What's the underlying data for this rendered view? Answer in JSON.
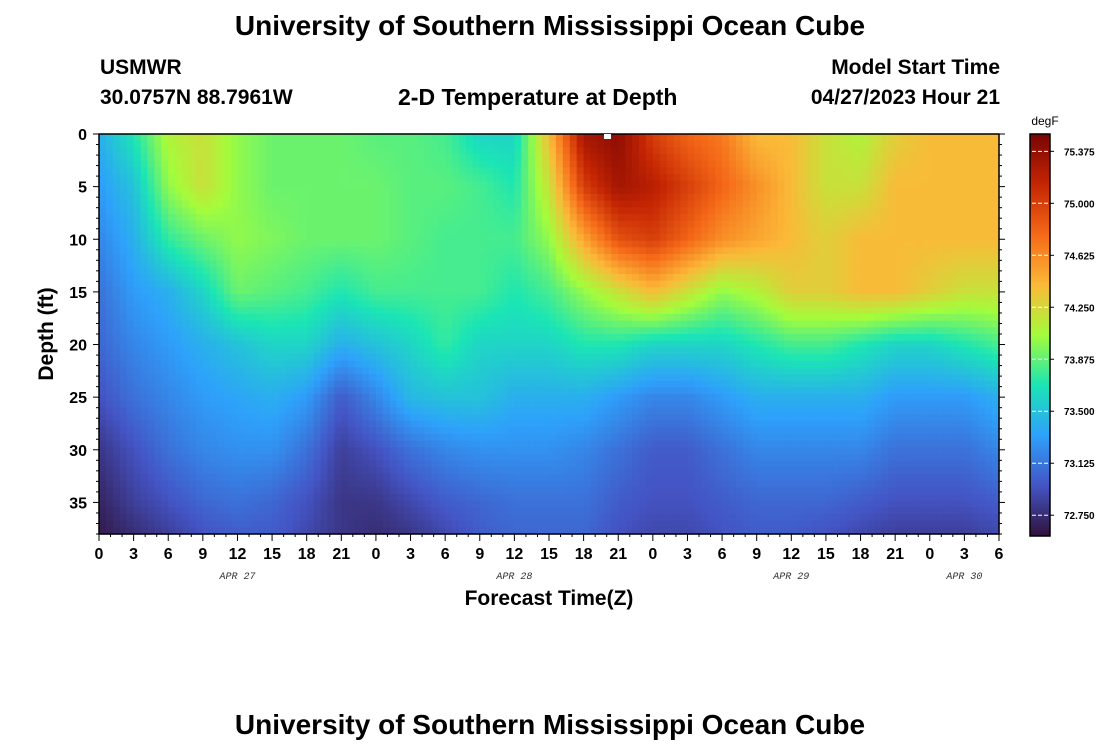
{
  "header": {
    "title": "University of Southern Mississippi Ocean Cube",
    "station": "USMWR",
    "coords": "30.0757N  88.7961W",
    "subtitle": "2-D Temperature at Depth",
    "model_start_label": "Model Start Time",
    "model_start_value": "04/27/2023 Hour 21"
  },
  "footer": {
    "title": "University of Southern Mississippi Ocean Cube"
  },
  "chart_data": {
    "type": "heatmap",
    "title": "2-D Temperature at Depth",
    "xlabel": "Forecast Time(Z)",
    "ylabel": "Depth (ft)",
    "x_range_hours": [
      0,
      78
    ],
    "x_tick_labels": [
      "0",
      "3",
      "6",
      "9",
      "12",
      "15",
      "18",
      "21",
      "0",
      "3",
      "6",
      "9",
      "12",
      "15",
      "18",
      "21",
      "0",
      "3",
      "6",
      "9",
      "12",
      "15",
      "18",
      "21",
      "0",
      "3",
      "6"
    ],
    "date_labels": [
      {
        "text": "APR 27",
        "hour": 12
      },
      {
        "text": "APR 28",
        "hour": 36
      },
      {
        "text": "APR 29",
        "hour": 60
      },
      {
        "text": "APR 30",
        "hour": 75
      }
    ],
    "y_range_ft": [
      0,
      38
    ],
    "y_ticks": [
      0,
      5,
      10,
      15,
      20,
      25,
      30,
      35
    ],
    "y_tick_labels": [
      "0",
      "5",
      "10",
      "15",
      "20",
      "25",
      "30",
      "35"
    ],
    "colorbar": {
      "unit": "degF",
      "range": [
        72.6,
        75.5
      ],
      "ticks": [
        72.75,
        73.125,
        73.5,
        73.875,
        74.25,
        74.625,
        75.0,
        75.375
      ],
      "tick_labels": [
        "72.750",
        "73.125",
        "73.500",
        "73.875",
        "74.250",
        "74.625",
        "75.000",
        "75.375"
      ],
      "stops": [
        "#30123b",
        "#4454c4",
        "#2ea1fb",
        "#1be5b5",
        "#a4fc3b",
        "#fbb938",
        "#f56918",
        "#c42503",
        "#7a0403"
      ]
    },
    "depths_ft": [
      0,
      5,
      10,
      15,
      20,
      25,
      30,
      35,
      38
    ],
    "times_hours": [
      0,
      3,
      6,
      9,
      12,
      15,
      18,
      21,
      24,
      27,
      30,
      33,
      36,
      39,
      42,
      45,
      48,
      51,
      54,
      57,
      60,
      63,
      66,
      69,
      72,
      75,
      78
    ],
    "temperature_degF": [
      [
        73.4,
        73.7,
        74.1,
        74.2,
        74.0,
        73.9,
        73.9,
        73.9,
        73.85,
        73.85,
        73.8,
        73.6,
        73.6,
        74.4,
        75.3,
        75.4,
        75.0,
        74.8,
        74.7,
        74.4,
        74.4,
        74.2,
        74.1,
        74.3,
        74.4,
        74.4,
        74.4
      ],
      [
        73.3,
        73.5,
        74.0,
        74.2,
        74.0,
        73.9,
        73.9,
        73.9,
        73.9,
        73.85,
        73.85,
        73.8,
        73.7,
        74.2,
        75.0,
        75.3,
        75.2,
        75.0,
        74.8,
        74.6,
        74.4,
        74.2,
        74.2,
        74.4,
        74.4,
        74.4,
        74.4
      ],
      [
        73.2,
        73.4,
        73.75,
        73.9,
        74.0,
        73.95,
        73.9,
        73.9,
        73.9,
        73.85,
        73.8,
        73.8,
        73.8,
        74.0,
        74.5,
        74.9,
        75.0,
        74.8,
        74.6,
        74.5,
        74.4,
        74.3,
        74.4,
        74.4,
        74.4,
        74.4,
        74.4
      ],
      [
        73.1,
        73.3,
        73.4,
        73.6,
        73.9,
        73.85,
        73.8,
        73.7,
        73.8,
        73.8,
        73.8,
        73.8,
        73.7,
        73.8,
        74.0,
        74.2,
        74.4,
        74.2,
        74.0,
        74.1,
        74.3,
        74.3,
        74.4,
        74.4,
        74.3,
        74.2,
        74.2
      ],
      [
        73.05,
        73.2,
        73.3,
        73.4,
        73.5,
        73.6,
        73.6,
        73.4,
        73.5,
        73.6,
        73.75,
        73.6,
        73.6,
        73.6,
        73.7,
        73.7,
        73.6,
        73.6,
        73.6,
        73.7,
        73.8,
        73.8,
        73.7,
        73.6,
        73.6,
        73.7,
        73.8
      ],
      [
        72.95,
        73.1,
        73.2,
        73.3,
        73.35,
        73.4,
        73.3,
        73.0,
        73.2,
        73.45,
        73.5,
        73.5,
        73.4,
        73.4,
        73.4,
        73.3,
        73.2,
        73.2,
        73.3,
        73.4,
        73.4,
        73.4,
        73.4,
        73.3,
        73.3,
        73.3,
        73.4
      ],
      [
        72.8,
        72.95,
        73.1,
        73.2,
        73.25,
        73.25,
        73.1,
        72.85,
        72.95,
        73.1,
        73.2,
        73.25,
        73.25,
        73.25,
        73.2,
        73.1,
        73.0,
        73.0,
        73.1,
        73.2,
        73.2,
        73.2,
        73.2,
        73.1,
        73.1,
        73.1,
        73.2
      ],
      [
        72.7,
        72.85,
        72.95,
        73.05,
        73.1,
        73.05,
        72.95,
        72.8,
        72.8,
        72.9,
        73.0,
        73.05,
        73.1,
        73.1,
        73.1,
        73.0,
        72.95,
        72.95,
        73.0,
        73.05,
        73.05,
        73.05,
        73.0,
        72.95,
        72.95,
        72.95,
        73.0
      ],
      [
        72.65,
        72.75,
        72.85,
        72.95,
        73.0,
        73.0,
        72.9,
        72.8,
        72.75,
        72.8,
        72.9,
        73.0,
        73.05,
        73.05,
        73.05,
        72.95,
        72.9,
        72.9,
        72.95,
        73.0,
        73.0,
        72.95,
        72.9,
        72.85,
        72.85,
        72.85,
        72.9
      ]
    ]
  }
}
